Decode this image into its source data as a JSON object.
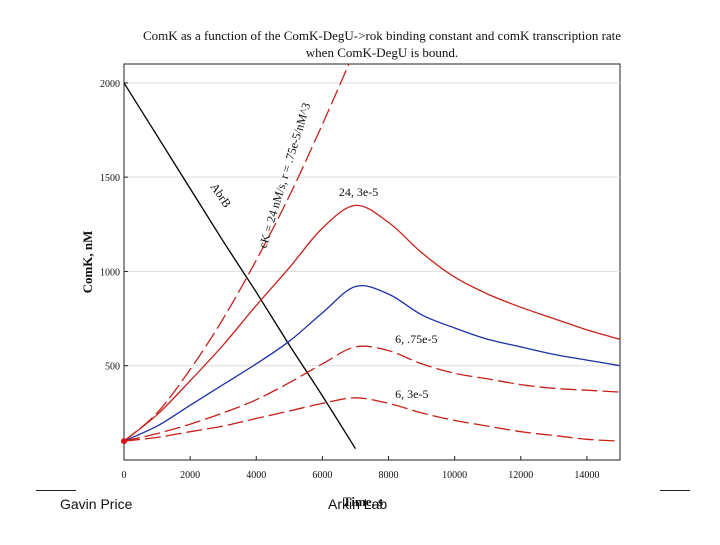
{
  "chart_data": {
    "type": "line",
    "title_line1": "ComK as a function of the ComK-DegU->rok binding constant and comK transcription rate",
    "title_line2": "when ComK-DegU is bound.",
    "xlabel": "Time, s",
    "ylabel": "ComK, nM",
    "xlim": [
      0,
      15000
    ],
    "ylim": [
      0,
      2100
    ],
    "xticks": [
      0,
      2000,
      4000,
      6000,
      8000,
      10000,
      12000,
      14000
    ],
    "xtick_labels": [
      "0",
      "2000",
      "4000",
      "6000",
      "8000",
      "10000",
      "12000",
      "14000"
    ],
    "yticks": [
      500,
      1000,
      1500,
      2000
    ],
    "ytick_labels": [
      "500",
      "1000",
      "1500",
      "2000"
    ],
    "series": [
      {
        "name": "AbrB",
        "color": "#000000",
        "dash": "solid",
        "x": [
          0,
          1000,
          2000,
          3000,
          4000,
          5000,
          6000,
          7000
        ],
        "y": [
          2000,
          1720,
          1440,
          1160,
          890,
          610,
          340,
          60
        ]
      },
      {
        "name": "cK = 24 nM/s, r = .75e-5/nM^3",
        "color": "#c8201a",
        "dash": "long",
        "x": [
          0,
          1000,
          2000,
          3000,
          4000,
          5000,
          6000,
          6800
        ],
        "y": [
          100,
          250,
          480,
          750,
          1060,
          1400,
          1780,
          2100
        ]
      },
      {
        "name": "24, 3e-5",
        "color": "#c8201a",
        "dash": "solid",
        "x": [
          0,
          1000,
          2000,
          3000,
          4000,
          5000,
          6000,
          7000,
          8000,
          9000,
          10000,
          11000,
          12000,
          13000,
          14000,
          15000
        ],
        "y": [
          100,
          240,
          420,
          610,
          820,
          1020,
          1230,
          1350,
          1260,
          1100,
          970,
          880,
          810,
          750,
          690,
          640
        ]
      },
      {
        "name": "ComK (blue)",
        "color": "#1c2fa8",
        "dash": "solid",
        "x": [
          0,
          1000,
          2000,
          3000,
          4000,
          5000,
          6000,
          7000,
          8000,
          9000,
          10000,
          11000,
          12000,
          13000,
          14000,
          15000
        ],
        "y": [
          100,
          180,
          290,
          400,
          510,
          630,
          780,
          920,
          880,
          770,
          700,
          640,
          600,
          560,
          530,
          500
        ]
      },
      {
        "name": "6, .75e-5",
        "color": "#c8201a",
        "dash": "long",
        "x": [
          0,
          1000,
          2000,
          3000,
          4000,
          5000,
          6000,
          7000,
          8000,
          9000,
          10000,
          11000,
          12000,
          13000,
          14000,
          15000
        ],
        "y": [
          100,
          140,
          190,
          250,
          320,
          410,
          510,
          600,
          580,
          510,
          460,
          430,
          400,
          380,
          370,
          360
        ]
      },
      {
        "name": "6, 3e-5",
        "color": "#c8201a",
        "dash": "long",
        "x": [
          0,
          1000,
          2000,
          3000,
          4000,
          5000,
          6000,
          7000,
          8000,
          9000,
          10000,
          11000,
          12000,
          13000,
          14000,
          15000
        ],
        "y": [
          100,
          120,
          150,
          180,
          220,
          260,
          300,
          330,
          300,
          250,
          210,
          180,
          150,
          130,
          110,
          100
        ]
      }
    ],
    "annotations": [
      {
        "text": "AbrB",
        "x": 2600,
        "y": 1450,
        "rotate": 55
      },
      {
        "text": "cK = 24 nM/s, r = .75e-5/nM^3",
        "x": 4300,
        "y": 1120,
        "rotate": -73
      },
      {
        "text": "24, 3e-5",
        "x": 6500,
        "y": 1400,
        "rotate": 0
      },
      {
        "text": "6, .75e-5",
        "x": 8200,
        "y": 620,
        "rotate": 0
      },
      {
        "text": "6, 3e-5",
        "x": 8200,
        "y": 330,
        "rotate": 0
      }
    ]
  },
  "footer": {
    "left": "Gavin Price",
    "center": "Arkin Lab"
  }
}
